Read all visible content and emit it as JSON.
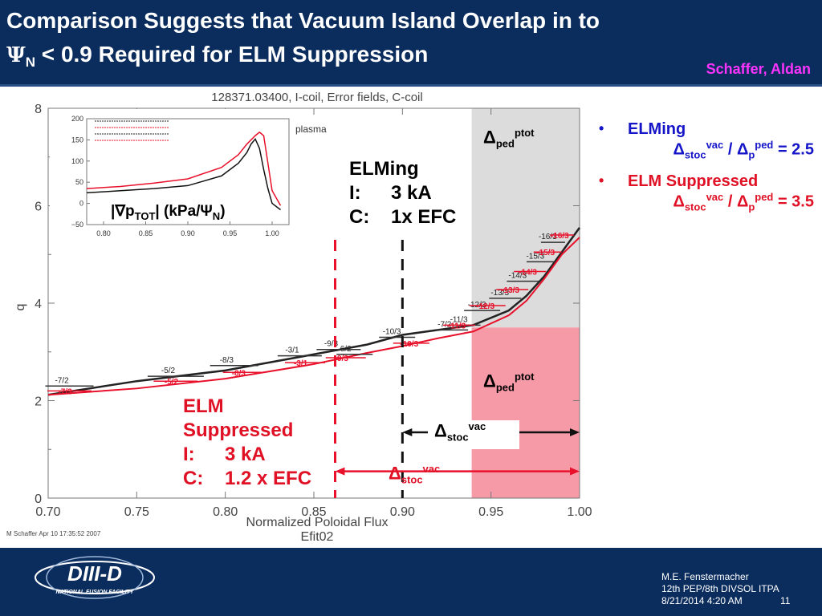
{
  "header": {
    "title_line1": "Comparison Suggests that Vacuum Island Overlap in to",
    "title_psi": "Ψ",
    "title_psi_sub": "N",
    "title_line2_rest": " < 0.9 Required for ELM Suppression",
    "author": "Schaffer, Aldan"
  },
  "colors": {
    "header_bg": "#0b2d5e",
    "black_curve": "#000000",
    "red_curve": "#e8102a",
    "ped_gray": "#dcdcdc",
    "ped_pink": "#f79aa8",
    "bullet_blue": "#1414c8",
    "bullet_red": "#e01025",
    "author_magenta": "#ff33ff"
  },
  "chart_data": [
    {
      "type": "line",
      "title": "128371.03400, I-coil, Error fields, C-coil",
      "xlabel": "Normalized Poloidal Flux",
      "xlabel2": "Efit02",
      "ylabel": "q",
      "xlim": [
        0.7,
        1.0
      ],
      "ylim": [
        0,
        8
      ],
      "xticks": [
        "0.70",
        "0.75",
        "0.80",
        "0.85",
        "0.90",
        "0.95",
        "1.00"
      ],
      "yticks": [
        "0",
        "2",
        "4",
        "6",
        "8"
      ],
      "credit": "M Schaffer Apr 10 17:35:52 2007",
      "partial_label": "plasma",
      "series": [
        {
          "color": "black",
          "x": [
            0.7,
            0.75,
            0.8,
            0.85,
            0.88,
            0.9,
            0.92,
            0.94,
            0.96,
            0.97,
            0.98,
            0.99,
            1.0
          ],
          "y": [
            2.12,
            2.4,
            2.62,
            2.95,
            3.15,
            3.35,
            3.45,
            3.55,
            3.85,
            4.15,
            4.55,
            5.05,
            5.55
          ]
        },
        {
          "color": "red",
          "x": [
            0.7,
            0.75,
            0.8,
            0.85,
            0.88,
            0.9,
            0.92,
            0.94,
            0.96,
            0.97,
            0.98,
            0.99,
            1.0
          ],
          "y": [
            2.12,
            2.25,
            2.45,
            2.75,
            2.98,
            3.12,
            3.28,
            3.42,
            3.75,
            4.05,
            4.5,
            5.0,
            5.35
          ]
        }
      ],
      "resonance_labels_black": [
        "-7/2",
        "-5/2",
        "-8/3",
        "-3/1",
        "-9/3",
        "6/2",
        "-10/3",
        "-7/2",
        "-11/3",
        "-12/3",
        "-13/3",
        "-14/3",
        "-15/3",
        "-16/3"
      ],
      "resonance_labels_red": [
        "-7/3",
        "-5/2",
        "-8/3",
        "-3/1",
        "-9/3",
        "-10/3",
        "-11/3",
        "-12/3",
        "-13/3",
        "-14/3",
        "-15/3",
        "-16/3"
      ],
      "vlines": [
        {
          "x": 0.862,
          "color": "red",
          "style": "dashed"
        },
        {
          "x": 0.9,
          "color": "black",
          "style": "dashed"
        }
      ],
      "regions": [
        {
          "x0": 0.94,
          "x1": 1.0,
          "y0": 3.5,
          "y1": 8.0,
          "color": "gray",
          "label": "Δ",
          "label_sub": "ped",
          "label_sup": "ptot"
        },
        {
          "x0": 0.94,
          "x1": 1.0,
          "y0": 0.0,
          "y1": 3.5,
          "color": "pink",
          "label": "Δ",
          "label_sub": "ped",
          "label_sup": "ptot"
        }
      ],
      "arrows": [
        {
          "x0": 0.9,
          "x1": 1.0,
          "y": 1.35,
          "color": "black",
          "label": "Δ",
          "label_sub": "stoc",
          "label_sup": "vac"
        },
        {
          "x0": 0.862,
          "x1": 1.0,
          "y": 0.55,
          "color": "red",
          "label": "Δ",
          "label_sub": "stoc",
          "label_sup": "vac"
        }
      ],
      "annotations": {
        "elming": [
          "ELMing",
          "I:",
          "3 kA",
          "C:",
          "1x EFC"
        ],
        "suppressed": [
          "ELM",
          "Suppressed",
          "I:",
          "3 kA",
          "C:",
          "1.2 x EFC"
        ]
      }
    },
    {
      "type": "line",
      "label_text": "|∇p",
      "label_sub": "TOT",
      "label_rest": "| (kPa/",
      "label_psi": "Ψ",
      "label_psi_sub": "N",
      "label_close": ")",
      "xlim": [
        0.78,
        1.02
      ],
      "ylim": [
        -50,
        200
      ],
      "xticks": [
        "0.80",
        "0.85",
        "0.90",
        "0.95",
        "1.00"
      ],
      "yticks": [
        "200",
        "150",
        "100",
        "50",
        "0",
        "−50"
      ],
      "series": [
        {
          "color": "black",
          "x": [
            0.78,
            0.82,
            0.86,
            0.9,
            0.94,
            0.96,
            0.97,
            0.975,
            0.98,
            0.985,
            0.99,
            0.995,
            1.0,
            1.01
          ],
          "y": [
            25,
            30,
            35,
            42,
            65,
            95,
            120,
            140,
            152,
            130,
            80,
            35,
            0,
            -15
          ]
        },
        {
          "color": "red",
          "x": [
            0.78,
            0.82,
            0.86,
            0.9,
            0.94,
            0.96,
            0.97,
            0.98,
            0.985,
            0.99,
            0.995,
            1.0,
            1.01
          ],
          "y": [
            35,
            40,
            48,
            58,
            85,
            115,
            140,
            160,
            168,
            160,
            95,
            30,
            -5
          ]
        }
      ]
    }
  ],
  "bullets": [
    {
      "label": "ELMing",
      "delta": "Δ",
      "sub1": "stoc",
      "sup1": "vac",
      "sep": " / ",
      "delta2": "Δ",
      "p": "p",
      "sup2": "ped",
      "value": " = 2.5"
    },
    {
      "label": "ELM Suppressed",
      "delta": "Δ",
      "sub1": "stoc",
      "sup1": "vac",
      "sep": " / ",
      "delta2": "Δ",
      "p": "p",
      "sup2": "ped",
      "value": " = 3.5"
    }
  ],
  "footer": {
    "logo_text": "DIII-D",
    "logo_sub": "NATIONAL FUSION FACILITY",
    "name": "M.E. Fenstermacher",
    "event": "12th PEP/8th DIVSOL ITPA",
    "date": "8/21/2014 4:20 AM",
    "page": "11"
  }
}
